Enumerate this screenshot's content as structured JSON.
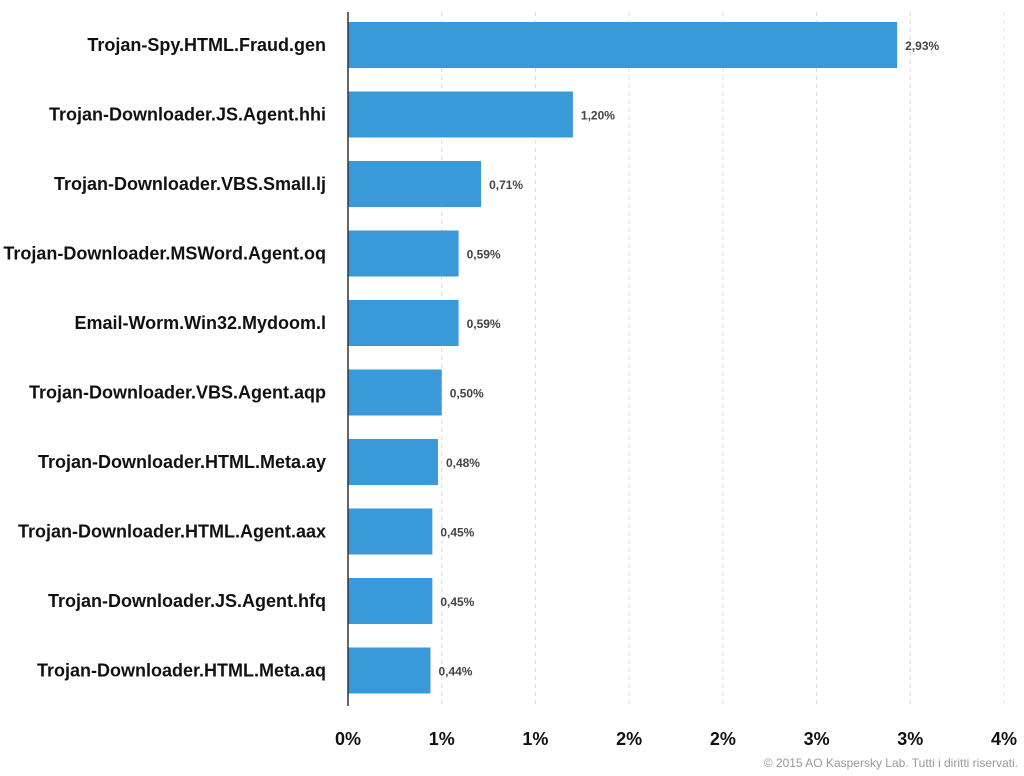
{
  "chart_data": {
    "type": "bar",
    "orientation": "horizontal",
    "categories": [
      "Trojan-Spy.HTML.Fraud.gen",
      "Trojan-Downloader.JS.Agent.hhi",
      "Trojan-Downloader.VBS.Small.lj",
      "Trojan-Downloader.MSWord.Agent.oq",
      "Email-Worm.Win32.Mydoom.l",
      "Trojan-Downloader.VBS.Agent.aqp",
      "Trojan-Downloader.HTML.Meta.ay",
      "Trojan-Downloader.HTML.Agent.aax",
      "Trojan-Downloader.JS.Agent.hfq",
      "Trojan-Downloader.HTML.Meta.aq"
    ],
    "values": [
      2.93,
      1.2,
      0.71,
      0.59,
      0.59,
      0.5,
      0.48,
      0.45,
      0.45,
      0.44
    ],
    "value_labels": [
      "2,93%",
      "1,20%",
      "0,71%",
      "0,59%",
      "0,59%",
      "0,50%",
      "0,48%",
      "0,45%",
      "0,45%",
      "0,44%"
    ],
    "xlim": [
      0,
      3.5
    ],
    "x_ticks": [
      0,
      0.5,
      1,
      1.5,
      2,
      2.5,
      3,
      3.5
    ],
    "x_tick_labels": [
      "0%",
      "1%",
      "1%",
      "2%",
      "2%",
      "3%",
      "3%",
      "4%"
    ],
    "grid": true,
    "legend": "none",
    "bar_color": "#3a9ad9"
  },
  "footer": {
    "copyright": "© 2015 AO Kaspersky Lab. Tutti i diritti riservati."
  }
}
